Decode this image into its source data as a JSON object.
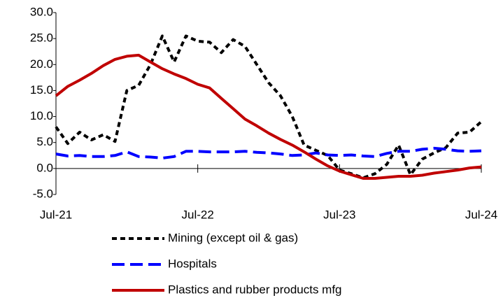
{
  "chart_data": {
    "type": "line",
    "categories": [
      "Jul-21",
      null,
      null,
      null,
      null,
      null,
      null,
      null,
      null,
      null,
      null,
      null,
      "Jul-22",
      null,
      null,
      null,
      null,
      null,
      null,
      null,
      null,
      null,
      null,
      null,
      "Jul-23",
      null,
      null,
      null,
      null,
      null,
      null,
      null,
      null,
      null,
      null,
      null,
      "Jul-24"
    ],
    "series": [
      {
        "name": "Mining (except oil & gas)",
        "color": "#000000",
        "dash": "7,5",
        "values": [
          8.0,
          4.8,
          7.0,
          5.5,
          6.5,
          5.2,
          15.0,
          16.0,
          20.0,
          25.5,
          20.5,
          25.5,
          24.5,
          24.3,
          22.3,
          24.8,
          23.5,
          20.0,
          16.5,
          14.0,
          10.0,
          4.5,
          3.5,
          2.5,
          -0.3,
          -1.0,
          -1.8,
          -1.0,
          0.8,
          4.5,
          -1.2,
          1.8,
          3.0,
          4.0,
          6.8,
          7.0,
          9.0
        ]
      },
      {
        "name": "Hospitals",
        "color": "#0000ff",
        "dash": "18,8",
        "values": [
          2.8,
          2.4,
          2.5,
          2.3,
          2.3,
          2.5,
          3.2,
          2.3,
          2.2,
          2.0,
          2.3,
          3.3,
          3.3,
          3.2,
          3.2,
          3.2,
          3.3,
          3.1,
          3.0,
          2.8,
          2.5,
          2.6,
          3.0,
          2.6,
          2.5,
          2.6,
          2.4,
          2.3,
          2.9,
          3.3,
          3.3,
          3.7,
          3.9,
          3.7,
          3.4,
          3.3,
          3.4
        ]
      },
      {
        "name": "Plastics and rubber products mfg",
        "color": "#c00000",
        "dash": "none",
        "values": [
          14.0,
          15.8,
          17.0,
          18.3,
          19.8,
          21.0,
          21.6,
          21.8,
          20.5,
          19.2,
          18.2,
          17.3,
          16.2,
          15.5,
          13.5,
          11.5,
          9.5,
          8.2,
          6.8,
          5.6,
          4.5,
          3.2,
          1.8,
          0.5,
          -0.5,
          -1.2,
          -1.9,
          -1.9,
          -1.7,
          -1.5,
          -1.5,
          -1.3,
          -0.9,
          -0.6,
          -0.3,
          0.1,
          0.3
        ]
      }
    ],
    "ylim": [
      -5,
      30
    ],
    "yticks": [
      {
        "value": -5,
        "label": "-5.0"
      },
      {
        "value": 0,
        "label": "0.0"
      },
      {
        "value": 5,
        "label": "5.0"
      },
      {
        "value": 10,
        "label": "10.0"
      },
      {
        "value": 15,
        "label": "15.0"
      },
      {
        "value": 20,
        "label": "20.0"
      },
      {
        "value": 25,
        "label": "25.0"
      },
      {
        "value": 30,
        "label": "30.0"
      }
    ],
    "grid": false
  }
}
